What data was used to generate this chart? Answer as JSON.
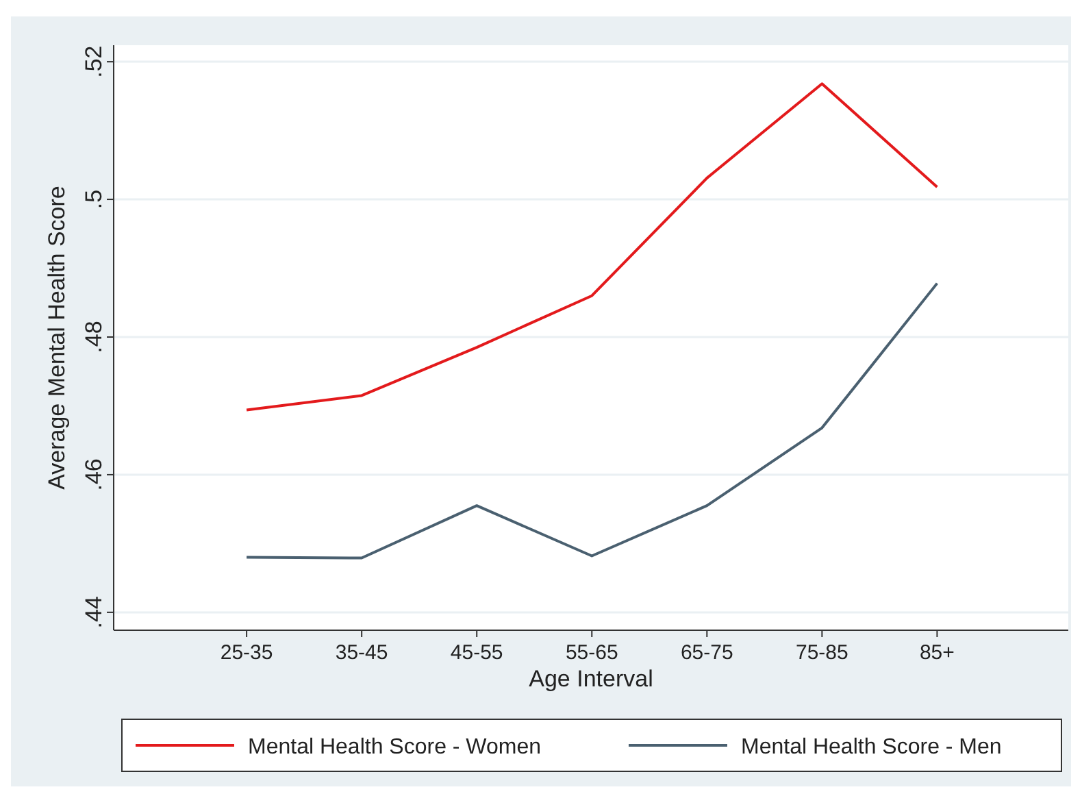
{
  "chart_data": {
    "type": "line",
    "xlabel": "Age Interval",
    "ylabel": "Average Mental Health Score",
    "categories": [
      "25-35",
      "35-45",
      "45-55",
      "55-65",
      "65-75",
      "75-85",
      "85+"
    ],
    "series": [
      {
        "name": "Mental Health Score - Women",
        "color": "#e31a1c",
        "values": [
          0.4694,
          0.4715,
          0.4785,
          0.486,
          0.5031,
          0.5168,
          0.5018
        ]
      },
      {
        "name": "Mental Health Score - Men",
        "color": "#4a6070",
        "values": [
          0.448,
          0.4479,
          0.4555,
          0.4482,
          0.4555,
          0.4668,
          0.4878
        ]
      }
    ],
    "ylim": [
      0.4374,
      0.5224
    ],
    "yticks": [
      {
        "value": 0.44,
        "label": ".44"
      },
      {
        "value": 0.46,
        "label": ".46"
      },
      {
        "value": 0.48,
        "label": ".48"
      },
      {
        "value": 0.5,
        "label": ".5"
      },
      {
        "value": 0.52,
        "label": ".52"
      }
    ],
    "grid": "y",
    "legend": "bottom",
    "marker": "none",
    "line_style": "solid"
  }
}
